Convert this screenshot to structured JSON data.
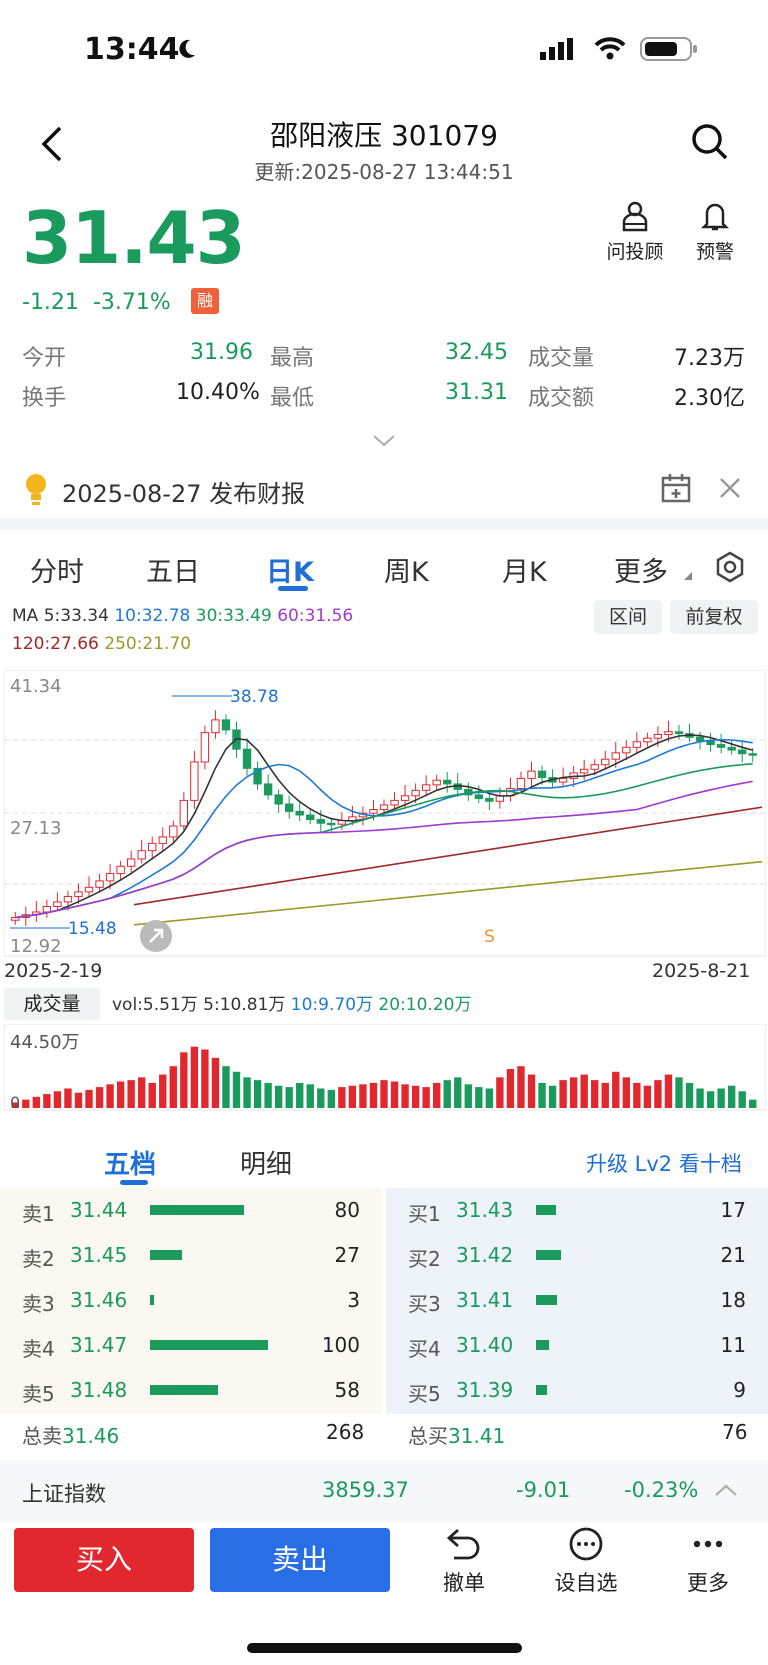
{
  "status_bar": {
    "time": "13:44"
  },
  "header": {
    "title": "邵阳液压 301079",
    "updated": "更新:2025-08-27 13:44:51",
    "advisor_label": "问投顾",
    "alert_label": "预警"
  },
  "quote": {
    "price": "31.43",
    "change": "-1.21",
    "change_pct": "-3.71%",
    "margin_badge": "融",
    "stats": [
      {
        "label": "今开",
        "value": "31.96"
      },
      {
        "label": "最高",
        "value": "32.45"
      },
      {
        "label": "成交量",
        "value": "7.23万"
      },
      {
        "label": "换手",
        "value": "10.40%"
      },
      {
        "label": "最低",
        "value": "31.31"
      },
      {
        "label": "成交额",
        "value": "2.30亿"
      }
    ]
  },
  "notice": {
    "text": "2025-08-27 发布财报"
  },
  "chart_tabs": [
    "分时",
    "五日",
    "日K",
    "周K",
    "月K",
    "更多"
  ],
  "active_tab": "日K",
  "ma_legend": {
    "prefix": "MA",
    "items": [
      {
        "text": "5:33.34",
        "color": "#333333"
      },
      {
        "text": "10:32.78",
        "color": "#1f7ad6"
      },
      {
        "text": "30:33.49",
        "color": "#1a9a5c"
      },
      {
        "text": "60:31.56",
        "color": "#a03ad0"
      },
      {
        "text": "120:27.66",
        "color": "#a02828"
      },
      {
        "text": "250:21.70",
        "color": "#9a9a2a"
      }
    ]
  },
  "range_button": "区间",
  "adjust_button": "前复权",
  "chart_data": {
    "type": "candlestick",
    "y_max_label": "41.34",
    "y_mid_label": "27.13",
    "y_min_label": "12.92",
    "high_marker": "38.78",
    "low_marker": "15.48",
    "x_start": "2025-2-19",
    "x_end": "2025-8-21",
    "ylim": [
      12.92,
      41.34
    ],
    "closes": [
      15.6,
      15.9,
      16.2,
      16.8,
      17.3,
      17.9,
      18.4,
      18.9,
      19.6,
      20.4,
      21.2,
      22.0,
      22.9,
      23.7,
      24.4,
      25.6,
      28.4,
      32.6,
      35.8,
      37.2,
      36.1,
      34.0,
      31.9,
      30.2,
      29.0,
      28.0,
      27.2,
      26.8,
      26.3,
      25.9,
      25.8,
      26.2,
      26.6,
      27.0,
      27.4,
      27.9,
      28.4,
      28.9,
      29.5,
      30.1,
      30.6,
      30.2,
      29.6,
      29.0,
      28.6,
      28.3,
      28.9,
      29.7,
      30.8,
      31.6,
      30.9,
      30.4,
      30.8,
      31.4,
      31.8,
      32.3,
      32.9,
      33.6,
      34.2,
      34.8,
      35.2,
      35.6,
      35.9,
      35.7,
      35.3,
      34.9,
      34.5,
      34.2,
      33.9,
      33.5,
      33.4
    ],
    "volume": {
      "label": "成交量",
      "legend": [
        {
          "text": "vol:5.51万",
          "color": "#333333"
        },
        {
          "text": "5:10.81万",
          "color": "#333333"
        },
        {
          "text": "10:9.70万",
          "color": "#1f7ad6"
        },
        {
          "text": "20:10.20万",
          "color": "#1a9a5c"
        }
      ],
      "max_label": "44.50万",
      "zero_label": "0",
      "values": [
        4,
        6,
        8,
        10,
        12,
        14,
        11,
        13,
        15,
        17,
        19,
        20,
        22,
        18,
        24,
        30,
        40,
        44,
        42,
        36,
        30,
        26,
        22,
        20,
        18,
        16,
        15,
        18,
        17,
        14,
        13,
        15,
        16,
        17,
        18,
        20,
        19,
        17,
        16,
        15,
        18,
        20,
        22,
        17,
        15,
        14,
        22,
        28,
        30,
        24,
        18,
        16,
        20,
        22,
        24,
        20,
        18,
        26,
        22,
        18,
        16,
        20,
        24,
        22,
        18,
        14,
        12,
        14,
        16,
        12,
        6
      ]
    }
  },
  "order_book": {
    "tabs": [
      "五档",
      "明细"
    ],
    "active_tab": "五档",
    "upgrade_link": "升级 Lv2 看十档",
    "sell": [
      {
        "label": "卖1",
        "price": "31.44",
        "qty": "80",
        "vol": 80
      },
      {
        "label": "卖2",
        "price": "31.45",
        "qty": "27",
        "vol": 27
      },
      {
        "label": "卖3",
        "price": "31.46",
        "qty": "3",
        "vol": 3
      },
      {
        "label": "卖4",
        "price": "31.47",
        "qty": "100",
        "vol": 100
      },
      {
        "label": "卖5",
        "price": "31.48",
        "qty": "58",
        "vol": 58
      }
    ],
    "buy": [
      {
        "label": "买1",
        "price": "31.43",
        "qty": "17",
        "vol": 17
      },
      {
        "label": "买2",
        "price": "31.42",
        "qty": "21",
        "vol": 21
      },
      {
        "label": "买3",
        "price": "31.41",
        "qty": "18",
        "vol": 18
      },
      {
        "label": "买4",
        "price": "31.40",
        "qty": "11",
        "vol": 11
      },
      {
        "label": "买5",
        "price": "31.39",
        "qty": "9",
        "vol": 9
      }
    ],
    "total_sell": {
      "label": "总卖",
      "price": "31.46",
      "qty": "268"
    },
    "total_buy": {
      "label": "总买",
      "price": "31.41",
      "qty": "76"
    }
  },
  "index_bar": {
    "name": "上证指数",
    "value": "3859.37",
    "change": "-9.01",
    "change_pct": "-0.23%"
  },
  "bottom_bar": {
    "buy": "买入",
    "sell": "卖出",
    "cancel": "撤单",
    "watchlist": "设自选",
    "more": "更多"
  },
  "colors": {
    "up": "#e0282e",
    "down": "#1a9a5c",
    "accent": "#1f6fd6",
    "buy_button": "#e0282e",
    "sell_button": "#2a6ee6"
  }
}
